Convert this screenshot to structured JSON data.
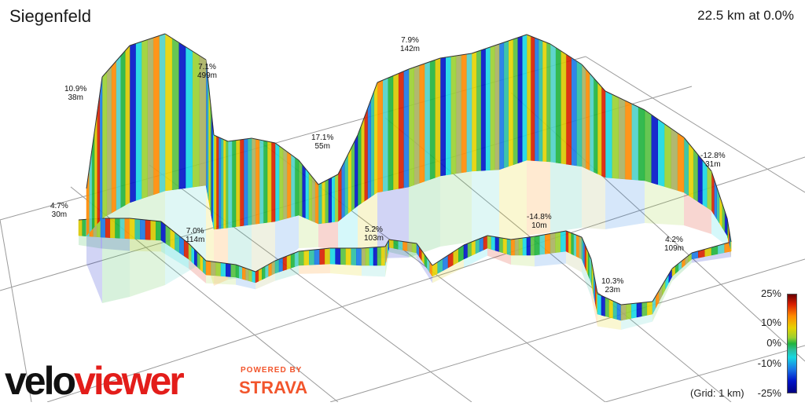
{
  "header": {
    "title": "Siegenfeld",
    "summary": "22.5 km at 0.0%"
  },
  "annotations": [
    {
      "grade": "10.9%",
      "dist": "38m"
    },
    {
      "grade": "7.1%",
      "dist": "499m"
    },
    {
      "grade": "7.9%",
      "dist": "142m"
    },
    {
      "grade": "17.1%",
      "dist": "55m"
    },
    {
      "grade": "-12.8%",
      "dist": "31m"
    },
    {
      "grade": "4.7%",
      "dist": "30m"
    },
    {
      "grade": "7.0%",
      "dist": "114m"
    },
    {
      "grade": "5.2%",
      "dist": "103m"
    },
    {
      "grade": "-14.8%",
      "dist": "10m"
    },
    {
      "grade": "4.2%",
      "dist": "109m"
    },
    {
      "grade": "10.3%",
      "dist": "23m"
    }
  ],
  "legend": {
    "ticks": [
      "25%",
      "10%",
      "0%",
      "-10%",
      "-25%"
    ],
    "grid_note": "(Grid: 1 km)",
    "colors": [
      "#6a0000",
      "#d81e00",
      "#ff8a00",
      "#e6d200",
      "#1fb33d",
      "#17d7e2",
      "#1a78e6",
      "#000080"
    ]
  },
  "branding": {
    "velo": "velo",
    "viewer": "viewer",
    "powered": "POWERED BY",
    "strava": "STRAVA"
  }
}
